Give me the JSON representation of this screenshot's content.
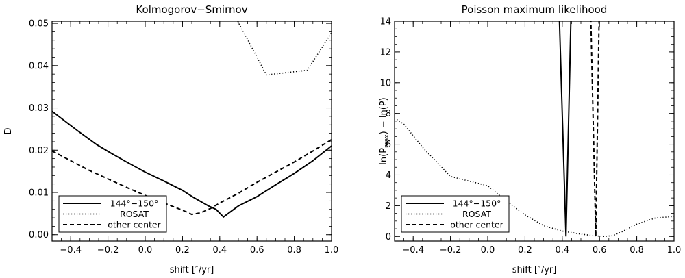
{
  "chart_data": [
    {
      "type": "line",
      "title": "Kolmogorov−Smirnov",
      "xlabel": "shift [″/yr]",
      "ylabel": "D",
      "xlim": [
        -0.5,
        1.0
      ],
      "ylim": [
        -0.0015,
        0.0505
      ],
      "xticks": [
        -0.4,
        -0.2,
        0.0,
        0.2,
        0.4,
        0.6,
        0.8,
        1.0
      ],
      "xtick_labels": [
        "−0.4",
        "−0.2",
        "0.0",
        "0.2",
        "0.4",
        "0.6",
        "0.8",
        "1.0"
      ],
      "yticks": [
        0.0,
        0.01,
        0.02,
        0.03,
        0.04,
        0.05
      ],
      "ytick_labels": [
        "0.00",
        "0.01",
        "0.02",
        "0.03",
        "0.04",
        "0.05"
      ],
      "legend_position": "bottom-left",
      "series": [
        {
          "name": "144°−150°",
          "style": "solid",
          "x": [
            -0.5,
            -0.36,
            -0.26,
            -0.18,
            -0.1,
            0.0,
            0.1,
            0.2,
            0.26,
            0.3,
            0.34,
            0.38,
            0.42,
            0.5,
            0.6,
            0.7,
            0.8,
            0.9,
            1.0
          ],
          "y": [
            0.0292,
            0.0245,
            0.0213,
            0.0192,
            0.0172,
            0.0148,
            0.0127,
            0.0105,
            0.0088,
            0.0078,
            0.0068,
            0.006,
            0.0042,
            0.0068,
            0.009,
            0.0118,
            0.0145,
            0.0175,
            0.021
          ]
        },
        {
          "name": "ROSAT",
          "style": "dotted",
          "x": [
            0.44,
            0.5,
            0.6,
            0.65,
            0.87,
            1.0
          ],
          "y": [
            0.055,
            0.0502,
            0.042,
            0.0378,
            0.0389,
            0.0478
          ]
        },
        {
          "name": "other center",
          "style": "dashed",
          "x": [
            -0.5,
            -0.3,
            -0.1,
            0.0,
            0.1,
            0.2,
            0.25,
            0.3,
            0.35,
            0.4,
            0.5,
            0.6,
            0.7,
            0.8,
            0.9,
            1.0
          ],
          "y": [
            0.0198,
            0.0152,
            0.0112,
            0.0093,
            0.0075,
            0.0058,
            0.0048,
            0.0052,
            0.0062,
            0.0075,
            0.0098,
            0.0124,
            0.0148,
            0.0172,
            0.0198,
            0.0225
          ]
        }
      ]
    },
    {
      "type": "line",
      "title": "Poisson maximum likelihood",
      "xlabel": "shift [″/yr]",
      "ylabel": "ln(P",
      "ylabel_sub": "max",
      "ylabel_tail": ") − ln(P)",
      "xlim": [
        -0.5,
        1.0
      ],
      "ylim": [
        -0.3,
        14.0
      ],
      "xticks": [
        -0.4,
        -0.2,
        0.0,
        0.2,
        0.4,
        0.6,
        0.8,
        1.0
      ],
      "xtick_labels": [
        "−0.4",
        "−0.2",
        "0.0",
        "0.2",
        "0.4",
        "0.6",
        "0.8",
        "1.0"
      ],
      "yticks": [
        0,
        2,
        4,
        6,
        8,
        10,
        12,
        14
      ],
      "ytick_labels": [
        "0",
        "2",
        "4",
        "6",
        "8",
        "10",
        "12",
        "14"
      ],
      "legend_position": "bottom-left",
      "series": [
        {
          "name": "144°−150°",
          "style": "solid",
          "x": [
            0.38,
            0.42,
            0.45
          ],
          "y": [
            16,
            0.0,
            16
          ]
        },
        {
          "name": "ROSAT",
          "style": "dotted",
          "x": [
            -0.5,
            -0.45,
            -0.35,
            -0.2,
            -0.1,
            0.0,
            0.1,
            0.2,
            0.3,
            0.4,
            0.5,
            0.57,
            0.62,
            0.67,
            0.72,
            0.8,
            0.9,
            1.0
          ],
          "y": [
            7.7,
            7.3,
            5.8,
            3.9,
            3.6,
            3.3,
            2.3,
            1.4,
            0.7,
            0.35,
            0.15,
            0.05,
            0.0,
            0.05,
            0.3,
            0.8,
            1.2,
            1.3
          ]
        },
        {
          "name": "other center",
          "style": "dashed",
          "x": [
            0.55,
            0.58,
            0.6
          ],
          "y": [
            16,
            0.0,
            16
          ]
        }
      ]
    }
  ]
}
